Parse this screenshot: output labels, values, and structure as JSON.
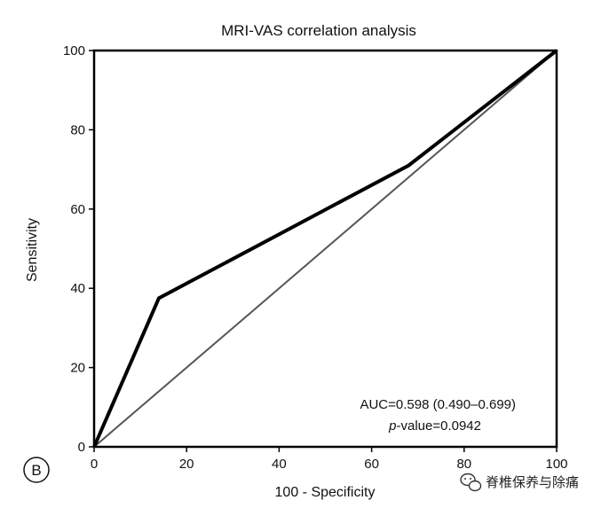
{
  "chart_data": {
    "type": "line",
    "title": "MRI-VAS correlation analysis",
    "xlabel": "100 - Specificity",
    "ylabel": "Sensitivity",
    "xlim": [
      0,
      100
    ],
    "ylim": [
      0,
      100
    ],
    "xticks": [
      0,
      20,
      40,
      60,
      80,
      100
    ],
    "yticks": [
      0,
      20,
      40,
      60,
      80,
      100
    ],
    "series": [
      {
        "name": "ROC curve",
        "x": [
          0,
          14,
          68,
          100
        ],
        "y": [
          0,
          37.5,
          71,
          100
        ],
        "color": "#000000"
      },
      {
        "name": "Reference line",
        "x": [
          0,
          100
        ],
        "y": [
          0,
          100
        ],
        "color": "#555555"
      }
    ],
    "annotations": {
      "auc": "AUC=0.598 (0.490–0.699)",
      "p_prefix": "p",
      "p_rest": "-value=0.0942"
    },
    "panel_label": "B"
  },
  "watermark": {
    "text": "脊椎保养与除痛",
    "icon": "wechat-icon"
  }
}
